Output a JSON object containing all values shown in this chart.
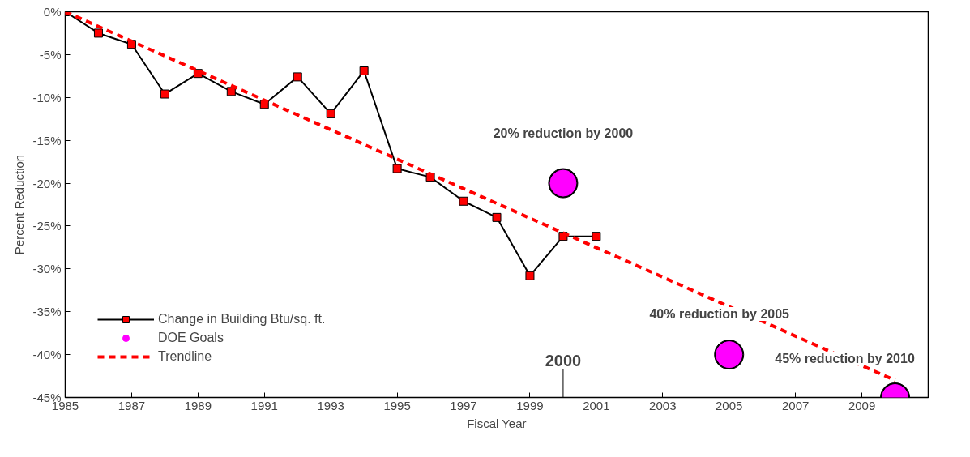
{
  "chart_data": {
    "type": "line",
    "xlabel": "Fiscal Year",
    "ylabel": "Percent Reduction",
    "xlim": [
      1985,
      2011
    ],
    "ylim": [
      -45,
      0
    ],
    "xticks": [
      1985,
      1987,
      1989,
      1991,
      1993,
      1995,
      1997,
      1999,
      2001,
      2003,
      2005,
      2007,
      2009
    ],
    "yticks": [
      {
        "value": 0,
        "label": "0%"
      },
      {
        "value": -5,
        "label": "-5%"
      },
      {
        "value": -10,
        "label": "-10%"
      },
      {
        "value": -15,
        "label": "-15%"
      },
      {
        "value": -20,
        "label": "-20%"
      },
      {
        "value": -25,
        "label": "-25%"
      },
      {
        "value": -30,
        "label": "-30%"
      },
      {
        "value": -35,
        "label": "-35%"
      },
      {
        "value": -40,
        "label": "-40%"
      },
      {
        "value": -45,
        "label": "-45%"
      }
    ],
    "grid": false,
    "legend": "bottom left",
    "series": [
      {
        "name": "Change in Building Btu/sq. ft.",
        "color": "#ff0000",
        "marker": "square",
        "line_style": "solid",
        "x": [
          1985,
          1986,
          1987,
          1988,
          1989,
          1990,
          1991,
          1992,
          1993,
          1994,
          1995,
          1996,
          1997,
          1998,
          1999,
          2000,
          2001
        ],
        "values": [
          0,
          -2.5,
          -3.8,
          -9.6,
          -7.2,
          -9.3,
          -10.8,
          -7.6,
          -11.9,
          -6.9,
          -18.3,
          -19.3,
          -22.1,
          -24.0,
          -30.8,
          -26.2,
          -26.2
        ]
      },
      {
        "name": "DOE Goals",
        "type": "scatter",
        "color": "#ff00ff",
        "marker": "circle",
        "x": [
          2000,
          2005,
          2010
        ],
        "values": [
          -20,
          -40,
          -45
        ]
      },
      {
        "name": "Trendline",
        "color": "#ff0000",
        "marker": "none",
        "line_style": "dashed",
        "x": [
          1985,
          2010
        ],
        "values": [
          0,
          -43
        ]
      }
    ],
    "ref_lines": [
      {
        "axis": "x",
        "value": 2000,
        "label": "2000"
      }
    ],
    "annotations": [
      "20% reduction by 2000",
      "40% reduction by 2005",
      "45% reduction by 2010"
    ]
  }
}
